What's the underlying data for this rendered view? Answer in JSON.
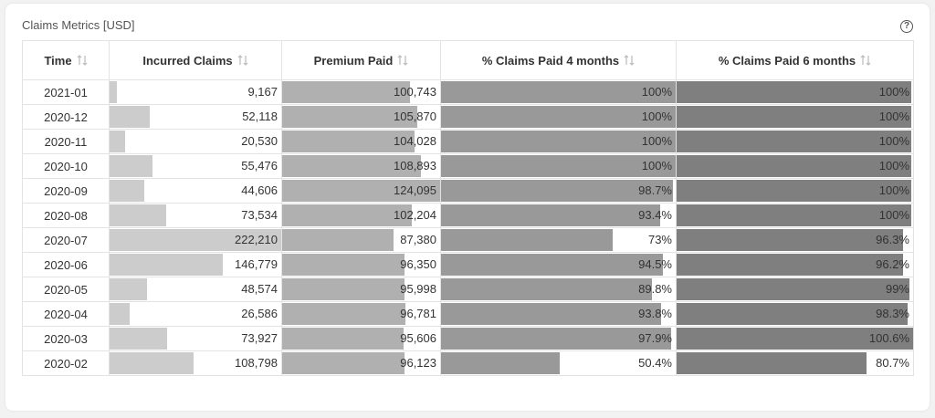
{
  "title": "Claims Metrics [USD]",
  "help_icon": "question-circle-icon",
  "columns": [
    {
      "label": "Time"
    },
    {
      "label": "Incurred Claims"
    },
    {
      "label": "Premium Paid"
    },
    {
      "label": "% Claims Paid 4 months"
    },
    {
      "label": "% Claims Paid 6 months"
    }
  ],
  "scale": {
    "incurred_max": 222210,
    "premium_max": 124095,
    "pct4_max": 100,
    "pct6_max": 100.6
  },
  "bar_colors": {
    "incurred": "#cccccc",
    "premium": "#b0b0b0",
    "pct4": "#999999",
    "pct6": "#7f7f7f"
  },
  "rows": [
    {
      "time": "2021-01",
      "incurred": "9,167",
      "incurred_v": 9167,
      "premium": "100,743",
      "premium_v": 100743,
      "pct4": "100%",
      "pct4_v": 100,
      "pct6": "100%",
      "pct6_v": 100
    },
    {
      "time": "2020-12",
      "incurred": "52,118",
      "incurred_v": 52118,
      "premium": "105,870",
      "premium_v": 105870,
      "pct4": "100%",
      "pct4_v": 100,
      "pct6": "100%",
      "pct6_v": 100
    },
    {
      "time": "2020-11",
      "incurred": "20,530",
      "incurred_v": 20530,
      "premium": "104,028",
      "premium_v": 104028,
      "pct4": "100%",
      "pct4_v": 100,
      "pct6": "100%",
      "pct6_v": 100
    },
    {
      "time": "2020-10",
      "incurred": "55,476",
      "incurred_v": 55476,
      "premium": "108,893",
      "premium_v": 108893,
      "pct4": "100%",
      "pct4_v": 100,
      "pct6": "100%",
      "pct6_v": 100
    },
    {
      "time": "2020-09",
      "incurred": "44,606",
      "incurred_v": 44606,
      "premium": "124,095",
      "premium_v": 124095,
      "pct4": "98.7%",
      "pct4_v": 98.7,
      "pct6": "100%",
      "pct6_v": 100
    },
    {
      "time": "2020-08",
      "incurred": "73,534",
      "incurred_v": 73534,
      "premium": "102,204",
      "premium_v": 102204,
      "pct4": "93.4%",
      "pct4_v": 93.4,
      "pct6": "100%",
      "pct6_v": 100
    },
    {
      "time": "2020-07",
      "incurred": "222,210",
      "incurred_v": 222210,
      "premium": "87,380",
      "premium_v": 87380,
      "pct4": "73%",
      "pct4_v": 73,
      "pct6": "96.3%",
      "pct6_v": 96.3
    },
    {
      "time": "2020-06",
      "incurred": "146,779",
      "incurred_v": 146779,
      "premium": "96,350",
      "premium_v": 96350,
      "pct4": "94.5%",
      "pct4_v": 94.5,
      "pct6": "96.2%",
      "pct6_v": 96.2
    },
    {
      "time": "2020-05",
      "incurred": "48,574",
      "incurred_v": 48574,
      "premium": "95,998",
      "premium_v": 95998,
      "pct4": "89.8%",
      "pct4_v": 89.8,
      "pct6": "99%",
      "pct6_v": 99
    },
    {
      "time": "2020-04",
      "incurred": "26,586",
      "incurred_v": 26586,
      "premium": "96,781",
      "premium_v": 96781,
      "pct4": "93.8%",
      "pct4_v": 93.8,
      "pct6": "98.3%",
      "pct6_v": 98.3
    },
    {
      "time": "2020-03",
      "incurred": "73,927",
      "incurred_v": 73927,
      "premium": "95,606",
      "premium_v": 95606,
      "pct4": "97.9%",
      "pct4_v": 97.9,
      "pct6": "100.6%",
      "pct6_v": 100.6
    },
    {
      "time": "2020-02",
      "incurred": "108,798",
      "incurred_v": 108798,
      "premium": "96,123",
      "premium_v": 96123,
      "pct4": "50.4%",
      "pct4_v": 50.4,
      "pct6": "80.7%",
      "pct6_v": 80.7
    }
  ]
}
